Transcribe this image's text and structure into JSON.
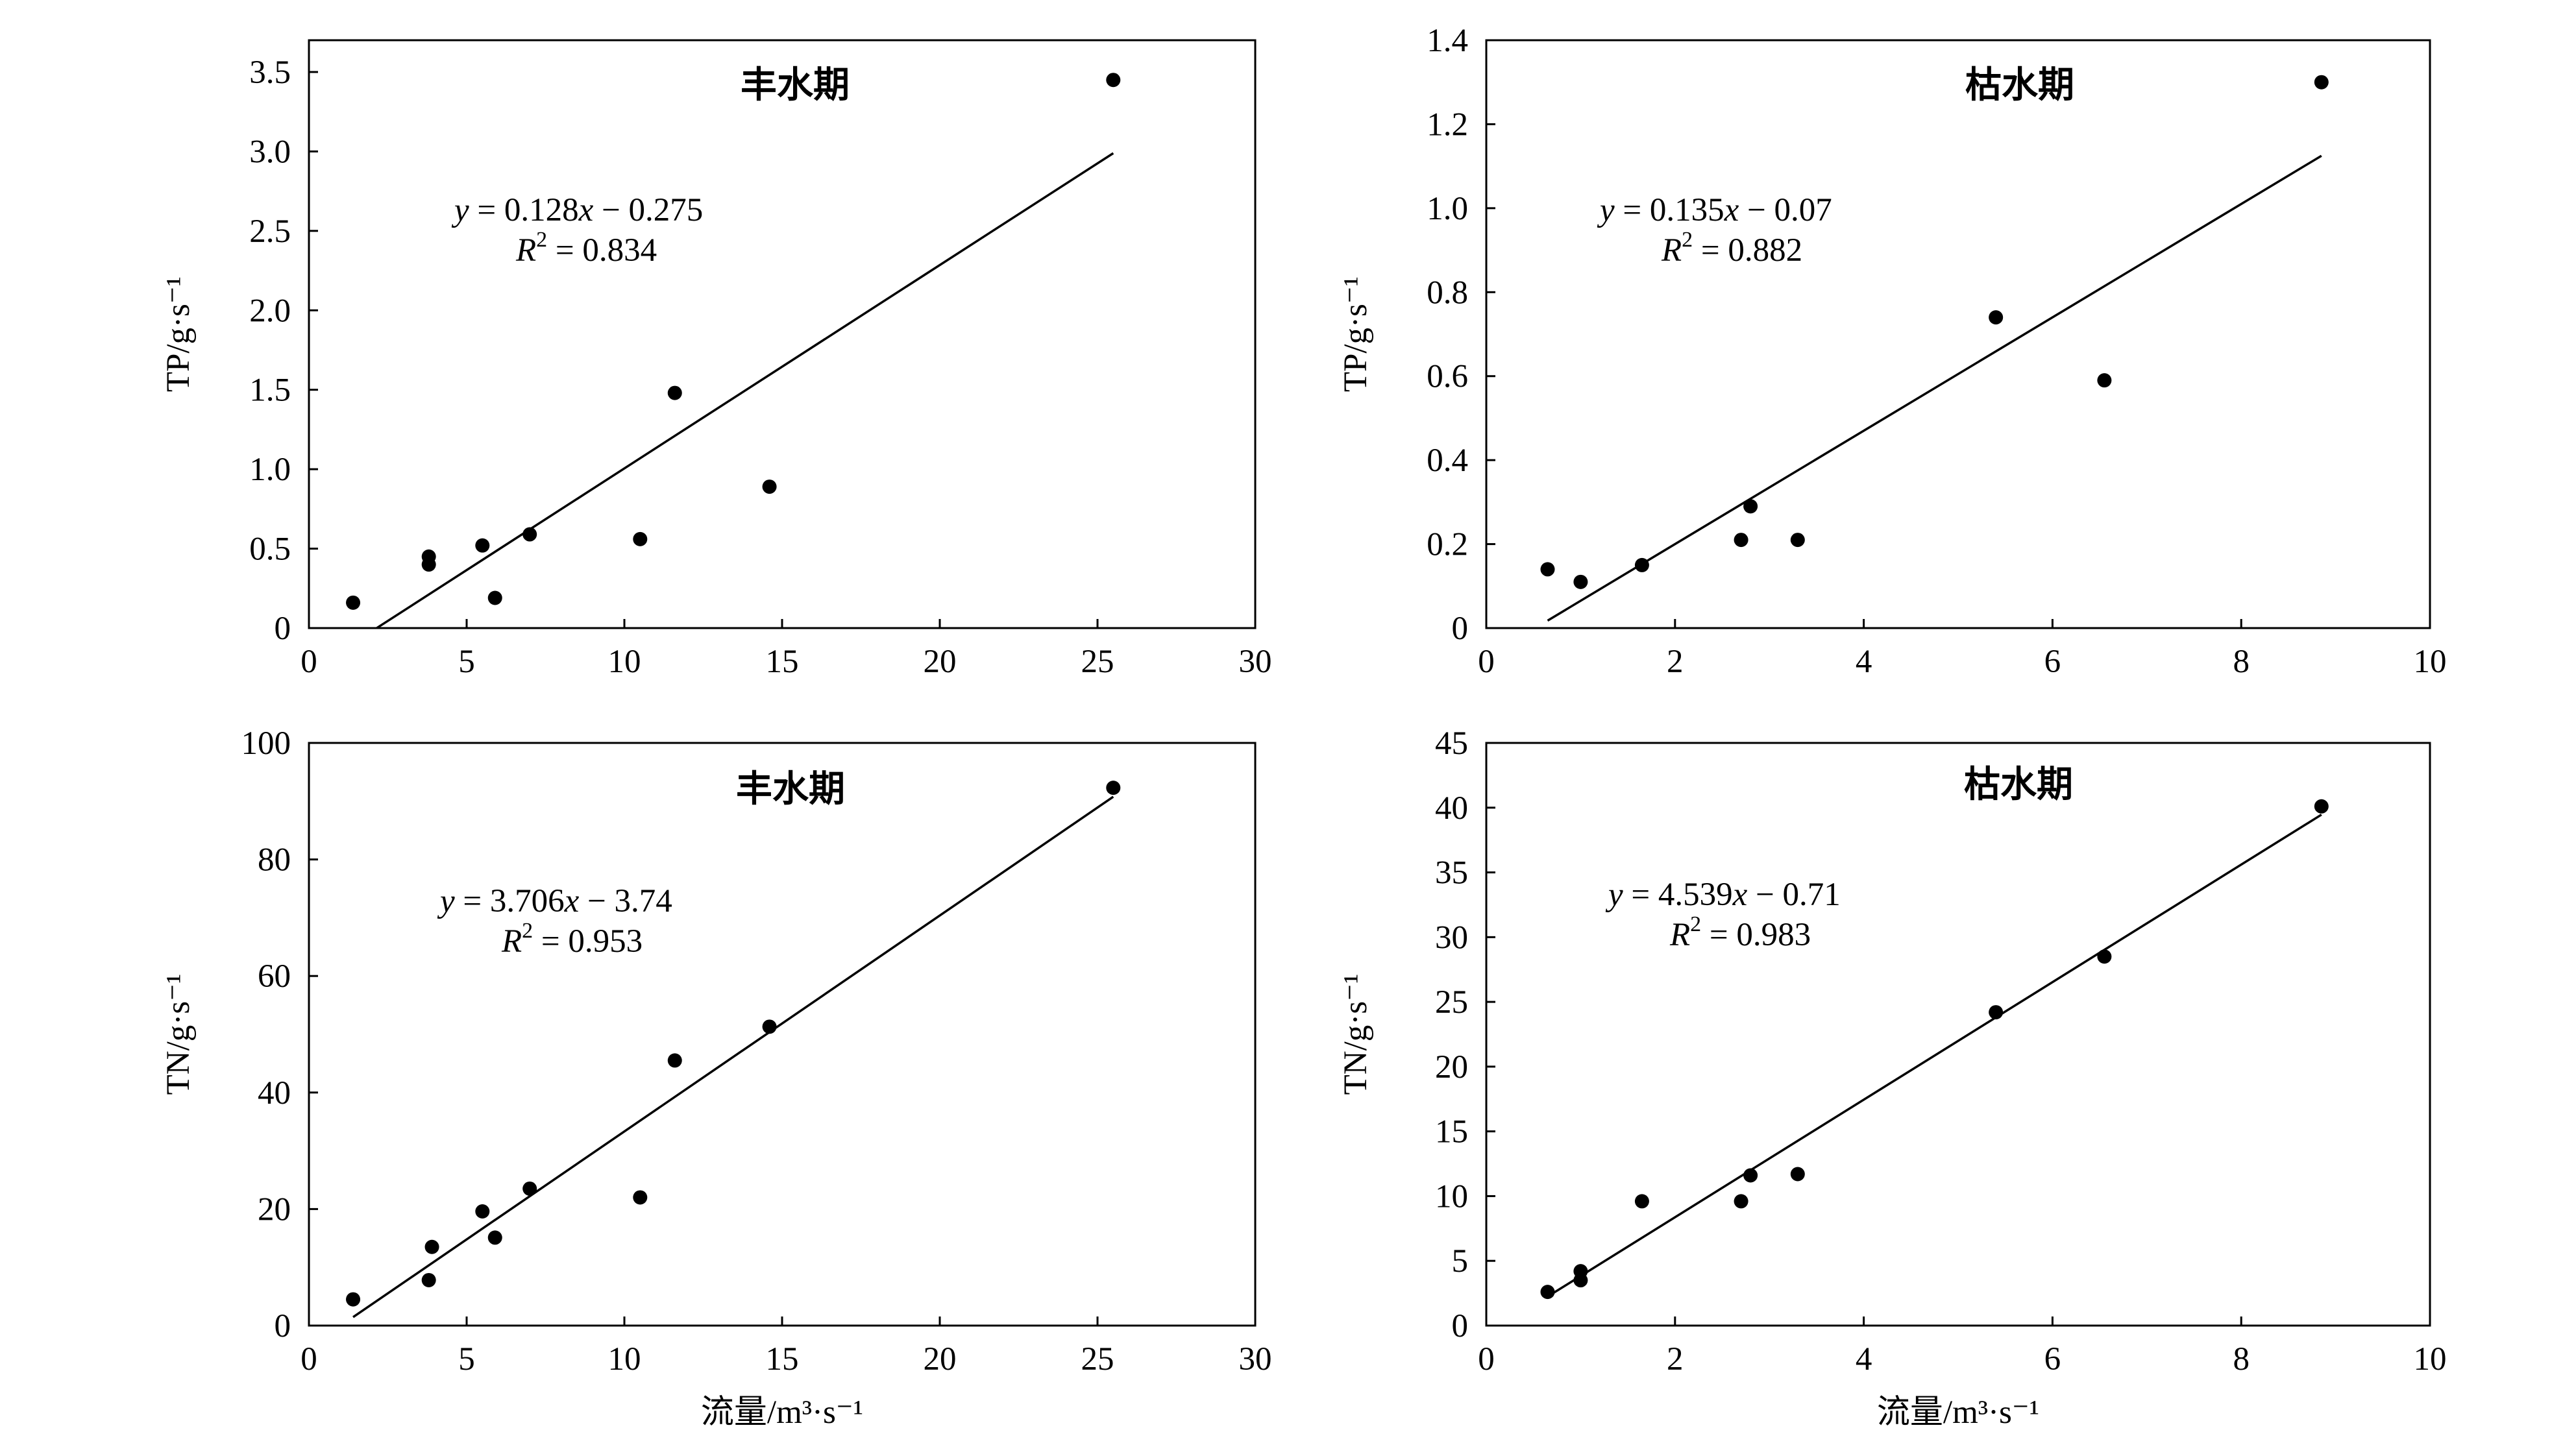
{
  "chart_data": [
    {
      "type": "scatter",
      "title": "丰水期",
      "xlabel": "",
      "ylabel": "TP/g·s⁻¹",
      "xlim": [
        0,
        30
      ],
      "ylim": [
        0,
        3.7
      ],
      "xticks": [
        0,
        5,
        10,
        15,
        20,
        25,
        30
      ],
      "yticks": [
        0,
        0.5,
        1.0,
        1.5,
        2.0,
        2.5,
        3.0,
        3.5
      ],
      "ytick_labels": [
        "0",
        "0.5",
        "1.0",
        "1.5",
        "2.0",
        "2.5",
        "3.0",
        "3.5"
      ],
      "points": [
        [
          1.4,
          0.16
        ],
        [
          3.8,
          0.4
        ],
        [
          3.8,
          0.45
        ],
        [
          5.5,
          0.52
        ],
        [
          5.9,
          0.19
        ],
        [
          7.0,
          0.59
        ],
        [
          10.5,
          0.56
        ],
        [
          11.6,
          1.48
        ],
        [
          14.6,
          0.89
        ],
        [
          25.5,
          3.45
        ]
      ],
      "fit": {
        "slope": 0.128,
        "intercept": -0.275,
        "x_range": [
          2.15,
          25.5
        ]
      },
      "equation": {
        "y": "y",
        "eq": " = 0.128",
        "x": "x",
        "rest": " − 0.275",
        "r": "R",
        "exp": "2",
        "r_rest": " = 0.834"
      }
    },
    {
      "type": "scatter",
      "title": "枯水期",
      "xlabel": "",
      "ylabel": "TP/g·s⁻¹",
      "xlim": [
        0,
        10
      ],
      "ylim": [
        0,
        1.4
      ],
      "xticks": [
        0,
        2,
        4,
        6,
        8,
        10
      ],
      "yticks": [
        0,
        0.2,
        0.4,
        0.6,
        0.8,
        1.0,
        1.2,
        1.4
      ],
      "ytick_labels": [
        "0",
        "0.2",
        "0.4",
        "0.6",
        "0.8",
        "1.0",
        "1.2",
        "1.4"
      ],
      "points": [
        [
          0.65,
          0.14
        ],
        [
          1.0,
          0.11
        ],
        [
          1.65,
          0.15
        ],
        [
          2.7,
          0.21
        ],
        [
          2.8,
          0.29
        ],
        [
          3.3,
          0.21
        ],
        [
          5.4,
          0.74
        ],
        [
          6.55,
          0.59
        ],
        [
          8.85,
          1.3
        ]
      ],
      "fit": {
        "slope": 0.135,
        "intercept": -0.07,
        "x_range": [
          0.65,
          8.85
        ]
      },
      "equation": {
        "y": "y",
        "eq": " = 0.135",
        "x": "x",
        "rest": " − 0.07",
        "r": "R",
        "exp": "2",
        "r_rest": " = 0.882"
      }
    },
    {
      "type": "scatter",
      "title": "丰水期",
      "xlabel": "流量/m³·s⁻¹",
      "ylabel": "TN/g·s⁻¹",
      "xlim": [
        0,
        30
      ],
      "ylim": [
        0,
        100
      ],
      "xticks": [
        0,
        5,
        10,
        15,
        20,
        25,
        30
      ],
      "yticks": [
        0,
        20,
        40,
        60,
        80,
        100
      ],
      "ytick_labels": [
        "0",
        "20",
        "40",
        "60",
        "80",
        "100"
      ],
      "points": [
        [
          1.4,
          4.5
        ],
        [
          3.8,
          7.8
        ],
        [
          3.9,
          13.5
        ],
        [
          5.5,
          19.6
        ],
        [
          5.9,
          15.1
        ],
        [
          7.0,
          23.5
        ],
        [
          10.5,
          22.0
        ],
        [
          11.6,
          45.5
        ],
        [
          14.6,
          51.3
        ],
        [
          25.5,
          92.3
        ]
      ],
      "fit": {
        "slope": 3.706,
        "intercept": -3.74,
        "x_range": [
          1.4,
          25.5
        ]
      },
      "equation": {
        "y": "y",
        "eq": " = 3.706",
        "x": "x",
        "rest": " − 3.74",
        "r": "R",
        "exp": "2",
        "r_rest": " = 0.953"
      }
    },
    {
      "type": "scatter",
      "title": "枯水期",
      "xlabel": "流量/m³·s⁻¹",
      "ylabel": "TN/g·s⁻¹",
      "xlim": [
        0,
        10
      ],
      "ylim": [
        0,
        45
      ],
      "xticks": [
        0,
        2,
        4,
        6,
        8,
        10
      ],
      "yticks": [
        0,
        5,
        10,
        15,
        20,
        25,
        30,
        35,
        40,
        45
      ],
      "ytick_labels": [
        "0",
        "5",
        "10",
        "15",
        "20",
        "25",
        "30",
        "35",
        "40",
        "45"
      ],
      "points": [
        [
          0.65,
          2.6
        ],
        [
          1.0,
          3.5
        ],
        [
          1.0,
          4.2
        ],
        [
          1.65,
          9.6
        ],
        [
          2.7,
          9.6
        ],
        [
          2.8,
          11.6
        ],
        [
          3.3,
          11.7
        ],
        [
          5.4,
          24.2
        ],
        [
          6.55,
          28.5
        ],
        [
          8.85,
          40.1
        ]
      ],
      "fit": {
        "slope": 4.539,
        "intercept": -0.71,
        "x_range": [
          0.65,
          8.85
        ]
      },
      "equation": {
        "y": "y",
        "eq": " = 4.539",
        "x": "x",
        "rest": " − 0.71",
        "r": "R",
        "exp": "2",
        "r_rest": " = 0.983"
      }
    }
  ]
}
